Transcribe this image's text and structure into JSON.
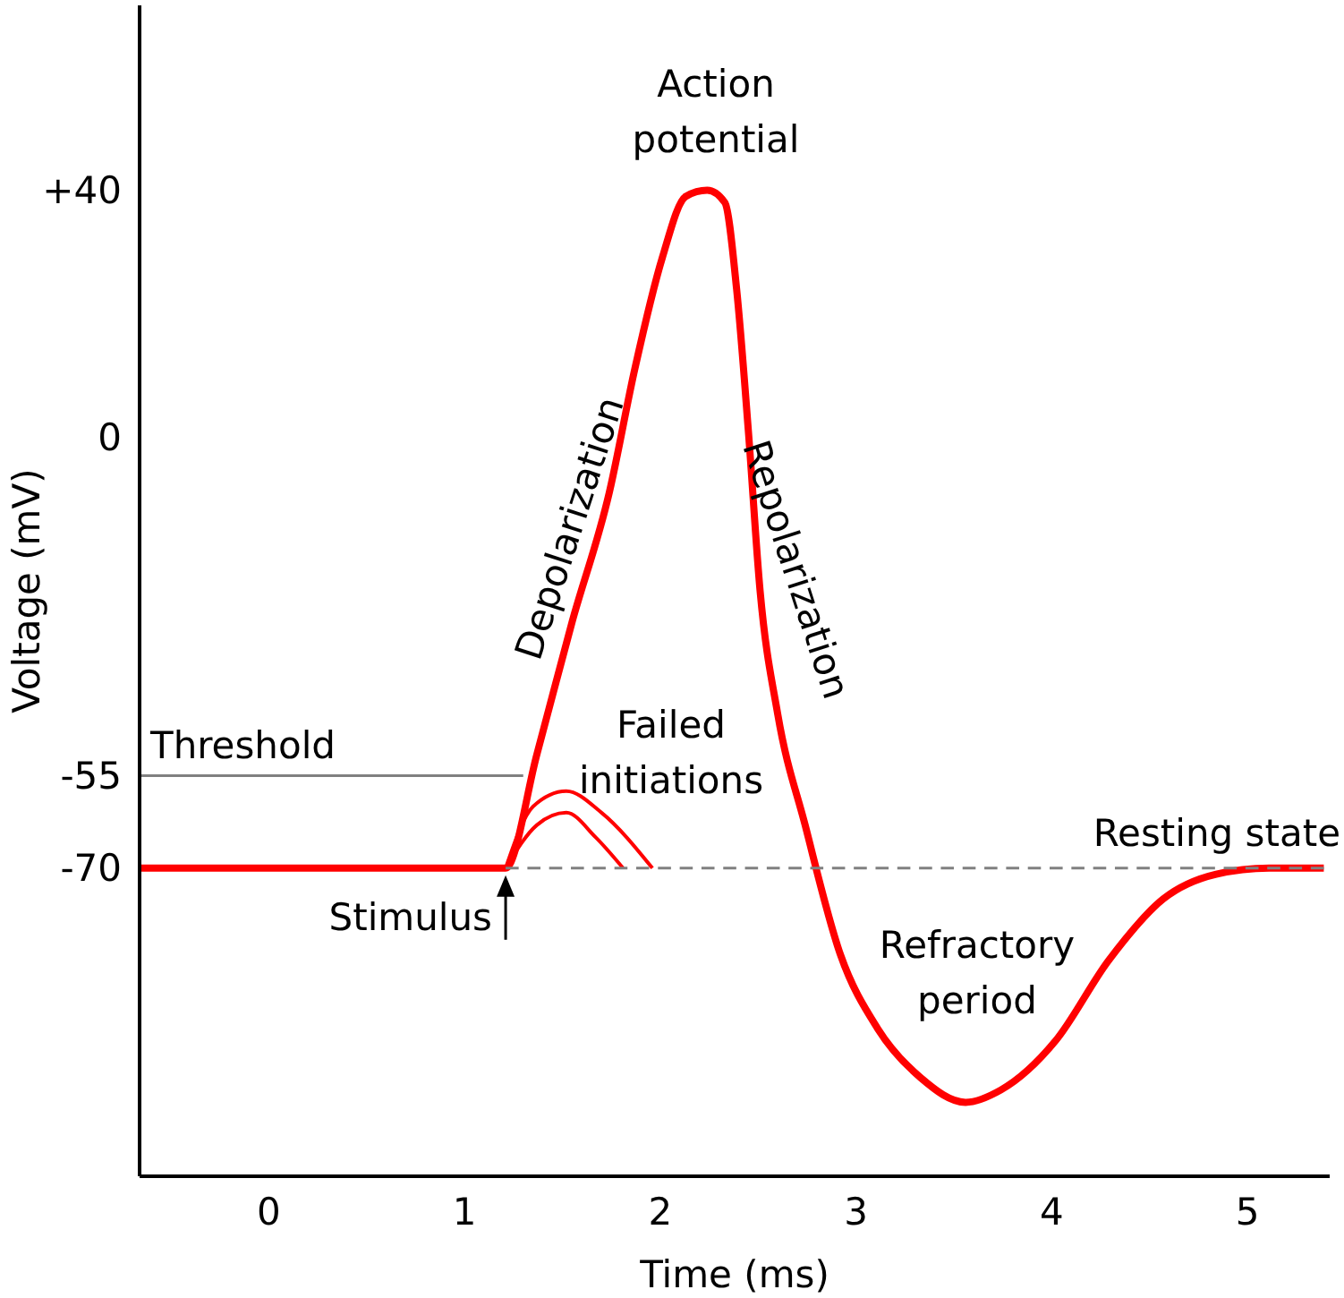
{
  "chart_data": {
    "type": "line",
    "xlabel": "Time (ms)",
    "ylabel": "Voltage (mV)",
    "xlim": [
      -0.66,
      5.42
    ],
    "xticks": [
      0,
      1,
      2,
      3,
      4,
      5
    ],
    "ylim": [
      -120,
      70
    ],
    "yticks": [
      {
        "value": 40,
        "label": "+40"
      },
      0,
      -55,
      -70
    ],
    "series": [
      {
        "color": "#ff0000",
        "x": [
          -0.66,
          1.21,
          1.37,
          1.55,
          1.74,
          1.87,
          2.01,
          2.13,
          2.24,
          2.33,
          2.39,
          2.45,
          2.51,
          2.6,
          2.74,
          2.92,
          3.11,
          3.33,
          3.56,
          3.74,
          4.02,
          4.29,
          4.57,
          4.84,
          5.11,
          5.39
        ],
        "values": [
          -70,
          -70,
          -51.5,
          -30,
          -9,
          11,
          29,
          39,
          40,
          38,
          24,
          1,
          -25,
          -45,
          -63,
          -84,
          -96,
          -104,
          -108,
          -106,
          -98,
          -85,
          -75,
          -71,
          -70,
          -70
        ]
      },
      {
        "color": "#ff0000",
        "x": [
          1.21,
          1.37,
          1.52,
          1.67,
          1.81
        ],
        "values": [
          -70,
          -63,
          -61,
          -65,
          -70
        ]
      },
      {
        "color": "#ff0000",
        "x": [
          1.21,
          1.35,
          1.52,
          1.7,
          1.96
        ],
        "values": [
          -70,
          -60,
          -57.5,
          -61,
          -70
        ]
      },
      {
        "color": "#808080",
        "x": [
          -0.66,
          1.3
        ],
        "values": [
          -55,
          -55
        ]
      },
      {
        "color": "#808080",
        "x": [
          1.21,
          5.39
        ],
        "values": [
          -70,
          -70
        ],
        "line_style": "dashed"
      }
    ],
    "annotations": [
      "Action potential",
      "Depolarization",
      "Repolarization",
      "Failed initiations",
      "Threshold",
      "Resting state",
      "Stimulus",
      "Refractory period"
    ]
  }
}
